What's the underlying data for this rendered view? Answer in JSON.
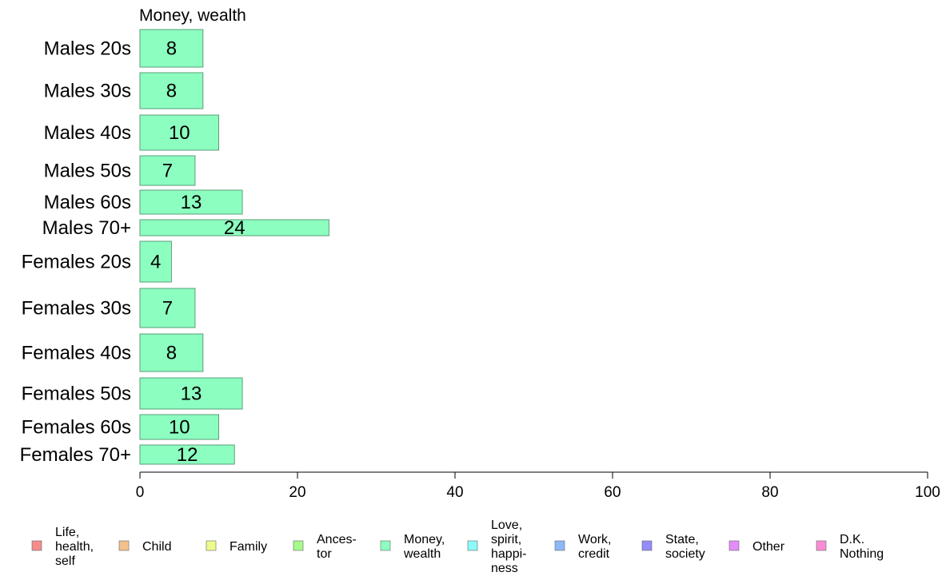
{
  "chart_data": {
    "type": "bar",
    "orientation": "horizontal",
    "panel_title": "Money, wealth",
    "categories": [
      "Males 20s",
      "Males 30s",
      "Males 40s",
      "Males 50s",
      "Males 60s",
      "Males 70+",
      "Females 20s",
      "Females 30s",
      "Females 40s",
      "Females 50s",
      "Females 60s",
      "Females 70+"
    ],
    "values": [
      8,
      8,
      10,
      7,
      13,
      24,
      4,
      7,
      8,
      13,
      10,
      12
    ],
    "xlim": [
      0,
      100
    ],
    "xticks": [
      0,
      20,
      40,
      60,
      80,
      100
    ],
    "grid": false,
    "bar_color": "#8cffc0",
    "bar_stroke": "#5a9e78",
    "legend_position": "bottom",
    "legend": [
      {
        "lines": [
          "Life,",
          "health,",
          "self"
        ],
        "color": "#f58c8c"
      },
      {
        "lines": [
          "Child"
        ],
        "color": "#f5c08c"
      },
      {
        "lines": [
          "Family"
        ],
        "color": "#eefa8c"
      },
      {
        "lines": [
          "Ances-",
          "tor"
        ],
        "color": "#a6fa8c"
      },
      {
        "lines": [
          "Money,",
          "wealth"
        ],
        "color": "#8cffc0"
      },
      {
        "lines": [
          "Love,",
          "spirit,",
          "happi-",
          "ness"
        ],
        "color": "#8cfafa"
      },
      {
        "lines": [
          "Work,",
          "credit"
        ],
        "color": "#8cb8fa"
      },
      {
        "lines": [
          "State,",
          "society"
        ],
        "color": "#948cfa"
      },
      {
        "lines": [
          "Other"
        ],
        "color": "#e38cfa"
      },
      {
        "lines": [
          "D.K.",
          "Nothing"
        ],
        "color": "#fa8cd4"
      }
    ]
  }
}
